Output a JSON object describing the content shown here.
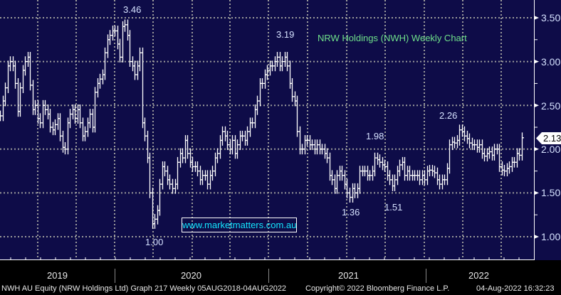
{
  "chart_data": {
    "type": "bar",
    "subtype": "ohlc-weekly",
    "title": "NRW Holdings (NWH) Weekly Chart",
    "xlabel": "",
    "ylabel": "",
    "ylim": [
      0.9,
      3.65
    ],
    "y_ticks": [
      "3.50",
      "3.00",
      "2.50",
      "2.00",
      "1.50",
      "1.00"
    ],
    "x_ticks": [
      "2019",
      "2020",
      "2021",
      "2022"
    ],
    "grid": true,
    "close": [
      2.38,
      2.55,
      2.7,
      2.95,
      3.0,
      2.95,
      2.75,
      2.43,
      2.7,
      2.9,
      3.0,
      3.05,
      2.73,
      2.45,
      2.5,
      2.35,
      2.3,
      2.5,
      2.45,
      2.4,
      2.25,
      2.22,
      2.28,
      2.35,
      2.15,
      2.02,
      2.0,
      2.3,
      2.4,
      2.45,
      2.35,
      2.45,
      2.3,
      2.15,
      2.2,
      2.3,
      2.4,
      2.25,
      2.65,
      2.75,
      2.8,
      2.85,
      3.1,
      3.25,
      3.3,
      3.35,
      3.35,
      3.2,
      3.05,
      3.4,
      3.42,
      3.3,
      3.0,
      2.95,
      2.85,
      2.95,
      3.1,
      2.3,
      2.15,
      1.9,
      1.5,
      1.15,
      1.2,
      1.3,
      1.6,
      1.8,
      1.75,
      1.65,
      1.6,
      1.55,
      1.6,
      1.85,
      1.95,
      1.9,
      2.1,
      1.95,
      1.85,
      1.8,
      1.8,
      1.75,
      1.65,
      1.7,
      1.7,
      1.6,
      1.7,
      1.75,
      1.9,
      1.95,
      2.1,
      2.2,
      2.15,
      2.05,
      2.0,
      2.1,
      1.95,
      2.05,
      2.15,
      2.15,
      2.1,
      2.2,
      2.3,
      2.3,
      2.45,
      2.55,
      2.75,
      2.75,
      2.85,
      2.9,
      2.95,
      2.95,
      3.0,
      3.05,
      2.95,
      3.0,
      3.05,
      2.95,
      2.75,
      2.6,
      2.55,
      2.2,
      2.0,
      2.0,
      2.1,
      2.1,
      2.05,
      2.05,
      2.0,
      2.05,
      2.0,
      2.0,
      1.95,
      1.9,
      1.7,
      1.65,
      1.55,
      1.7,
      1.75,
      1.7,
      1.6,
      1.5,
      1.45,
      1.55,
      1.5,
      1.55,
      1.75,
      1.75,
      1.75,
      1.7,
      1.7,
      1.75,
      1.9,
      1.88,
      1.85,
      1.82,
      1.8,
      1.7,
      1.65,
      1.58,
      1.65,
      1.75,
      1.82,
      1.85,
      1.7,
      1.75,
      1.7,
      1.7,
      1.7,
      1.7,
      1.65,
      1.7,
      1.65,
      1.75,
      1.76,
      1.75,
      1.73,
      1.65,
      1.6,
      1.65,
      1.65,
      1.78,
      2.05,
      2.08,
      2.07,
      2.1,
      2.22,
      2.2,
      2.15,
      2.12,
      2.07,
      2.05,
      2.05,
      2.02,
      2.05,
      1.95,
      1.92,
      1.95,
      1.97,
      1.93,
      2.0,
      2.0,
      1.8,
      1.76,
      1.75,
      1.78,
      1.8,
      1.85,
      1.85,
      1.95,
      1.93,
      2.13
    ],
    "annotations": [
      "3.46",
      "1.00",
      "3.19",
      "1.98",
      "1.36",
      "1.51",
      "2.26"
    ],
    "last_price": "2.13",
    "colors": {
      "background": "#0e0c48",
      "bars": "#ffffff",
      "grid": "#9a9a9a",
      "title": "#6fe08a",
      "watermark": "#14e6ff"
    }
  },
  "watermark": "www.marketmatters.com.au",
  "footer": {
    "security": "NWH AU Equity (NRW Holdings Ltd) Graph 217  Weekly 05AUG2018-04AUG2022",
    "copyright": "Copyright© 2022 Bloomberg Finance L.P.",
    "timestamp": "04-Aug-2022 16:32:23"
  }
}
